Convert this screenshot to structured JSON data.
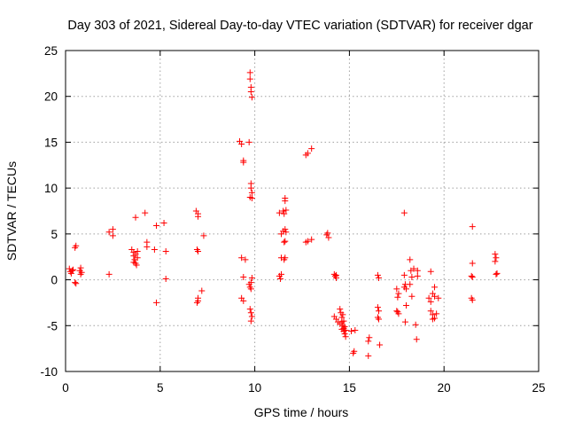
{
  "chart_data": {
    "type": "scatter",
    "title": "Day 303 of 2021, Sidereal Day-to-day VTEC variation (SDTVAR) for receiver dgar",
    "xlabel": "GPS time / hours",
    "ylabel": "SDTVAR / TECUs",
    "xlim": [
      0,
      25
    ],
    "ylim": [
      -10,
      25
    ],
    "xticks": [
      0,
      5,
      10,
      15,
      20,
      25
    ],
    "yticks": [
      -10,
      -5,
      0,
      5,
      10,
      15,
      20,
      25
    ],
    "grid": true,
    "marker": "+",
    "color": "#ff0000",
    "series": [
      {
        "name": "SDTVAR",
        "points": [
          [
            0.2,
            1.2
          ],
          [
            0.25,
            0.9
          ],
          [
            0.3,
            0.7
          ],
          [
            0.35,
            1.0
          ],
          [
            0.4,
            1.1
          ],
          [
            0.5,
            -0.3
          ],
          [
            0.55,
            -0.4
          ],
          [
            0.5,
            3.5
          ],
          [
            0.55,
            3.7
          ],
          [
            0.75,
            1.0
          ],
          [
            0.8,
            0.6
          ],
          [
            0.8,
            1.3
          ],
          [
            0.85,
            0.8
          ],
          [
            2.3,
            0.6
          ],
          [
            2.3,
            5.2
          ],
          [
            2.5,
            5.5
          ],
          [
            2.5,
            4.8
          ],
          [
            3.5,
            3.3
          ],
          [
            3.6,
            3.0
          ],
          [
            3.6,
            2.6
          ],
          [
            3.65,
            2.2
          ],
          [
            3.7,
            1.8
          ],
          [
            3.7,
            2.8
          ],
          [
            3.75,
            1.6
          ],
          [
            3.8,
            2.4
          ],
          [
            3.8,
            3.1
          ],
          [
            3.6,
            1.9
          ],
          [
            3.7,
            6.8
          ],
          [
            4.2,
            7.3
          ],
          [
            4.3,
            4.1
          ],
          [
            4.3,
            3.6
          ],
          [
            4.7,
            3.3
          ],
          [
            4.8,
            5.9
          ],
          [
            4.8,
            -2.5
          ],
          [
            5.2,
            6.2
          ],
          [
            5.3,
            3.1
          ],
          [
            5.3,
            0.1
          ],
          [
            6.9,
            7.5
          ],
          [
            7.0,
            7.2
          ],
          [
            7.0,
            6.9
          ],
          [
            6.95,
            3.3
          ],
          [
            7.0,
            3.1
          ],
          [
            7.0,
            -2.0
          ],
          [
            6.95,
            -2.5
          ],
          [
            7.0,
            -2.3
          ],
          [
            7.2,
            -1.2
          ],
          [
            7.3,
            4.8
          ],
          [
            9.2,
            15.1
          ],
          [
            9.3,
            14.8
          ],
          [
            9.4,
            13.0
          ],
          [
            9.4,
            12.8
          ],
          [
            9.3,
            2.4
          ],
          [
            9.5,
            2.2
          ],
          [
            9.4,
            0.3
          ],
          [
            9.3,
            -2.0
          ],
          [
            9.4,
            -2.3
          ],
          [
            9.7,
            15.0
          ],
          [
            9.75,
            22.6
          ],
          [
            9.75,
            21.9
          ],
          [
            9.8,
            21.0
          ],
          [
            9.8,
            20.5
          ],
          [
            9.85,
            19.9
          ],
          [
            9.8,
            10.5
          ],
          [
            9.8,
            10.0
          ],
          [
            9.85,
            9.5
          ],
          [
            9.75,
            9.0
          ],
          [
            9.85,
            8.9
          ],
          [
            9.7,
            -0.5
          ],
          [
            9.75,
            -0.8
          ],
          [
            9.8,
            -0.3
          ],
          [
            9.85,
            0.2
          ],
          [
            9.8,
            -1.0
          ],
          [
            9.75,
            -3.2
          ],
          [
            9.8,
            -3.6
          ],
          [
            9.85,
            -4.0
          ],
          [
            9.8,
            -4.5
          ],
          [
            11.3,
            7.3
          ],
          [
            11.4,
            5.0
          ],
          [
            11.4,
            2.4
          ],
          [
            11.3,
            0.4
          ],
          [
            11.35,
            0.1
          ],
          [
            11.4,
            0.6
          ],
          [
            11.5,
            7.5
          ],
          [
            11.55,
            7.2
          ],
          [
            11.6,
            8.6
          ],
          [
            11.6,
            8.9
          ],
          [
            11.65,
            7.6
          ],
          [
            11.5,
            5.3
          ],
          [
            11.6,
            5.5
          ],
          [
            11.65,
            5.2
          ],
          [
            11.55,
            4.1
          ],
          [
            11.6,
            4.2
          ],
          [
            11.6,
            2.4
          ],
          [
            11.55,
            2.2
          ],
          [
            12.7,
            13.6
          ],
          [
            12.8,
            13.8
          ],
          [
            13.0,
            14.3
          ],
          [
            12.7,
            4.1
          ],
          [
            12.8,
            4.2
          ],
          [
            13.0,
            4.4
          ],
          [
            13.8,
            4.9
          ],
          [
            13.9,
            4.6
          ],
          [
            13.85,
            5.1
          ],
          [
            14.2,
            0.6
          ],
          [
            14.25,
            0.4
          ],
          [
            14.3,
            0.2
          ],
          [
            14.3,
            0.5
          ],
          [
            14.2,
            -4.0
          ],
          [
            14.3,
            -4.3
          ],
          [
            14.4,
            -4.6
          ],
          [
            14.5,
            -3.2
          ],
          [
            14.55,
            -3.6
          ],
          [
            14.6,
            -4.1
          ],
          [
            14.6,
            -4.6
          ],
          [
            14.65,
            -5.0
          ],
          [
            14.7,
            -5.3
          ],
          [
            14.7,
            -5.6
          ],
          [
            14.75,
            -5.9
          ],
          [
            14.8,
            -6.2
          ],
          [
            14.65,
            -3.8
          ],
          [
            14.7,
            -4.5
          ],
          [
            14.75,
            -5.1
          ],
          [
            14.6,
            -5.4
          ],
          [
            14.5,
            -4.8
          ],
          [
            14.8,
            -5.5
          ],
          [
            15.1,
            -5.6
          ],
          [
            15.2,
            -8.0
          ],
          [
            15.25,
            -7.8
          ],
          [
            15.3,
            -5.5
          ],
          [
            16.0,
            -8.3
          ],
          [
            16.0,
            -6.7
          ],
          [
            16.05,
            -6.3
          ],
          [
            16.5,
            0.5
          ],
          [
            16.55,
            0.2
          ],
          [
            16.5,
            -3.0
          ],
          [
            16.55,
            -3.4
          ],
          [
            16.5,
            -4.1
          ],
          [
            16.55,
            -4.3
          ],
          [
            16.6,
            -7.1
          ],
          [
            17.5,
            -1.0
          ],
          [
            17.6,
            -1.5
          ],
          [
            17.55,
            -1.9
          ],
          [
            17.5,
            -3.4
          ],
          [
            17.6,
            -3.7
          ],
          [
            17.55,
            -3.5
          ],
          [
            17.9,
            0.5
          ],
          [
            17.9,
            -0.8
          ],
          [
            17.95,
            -0.5
          ],
          [
            18.0,
            -1.0
          ],
          [
            18.0,
            -2.8
          ],
          [
            17.95,
            -4.6
          ],
          [
            17.9,
            7.3
          ],
          [
            18.2,
            2.2
          ],
          [
            18.25,
            1.0
          ],
          [
            18.3,
            0.3
          ],
          [
            18.2,
            -0.5
          ],
          [
            18.3,
            -1.8
          ],
          [
            18.4,
            1.2
          ],
          [
            18.6,
            0.4
          ],
          [
            18.6,
            1.0
          ],
          [
            18.5,
            -4.9
          ],
          [
            18.55,
            -6.5
          ],
          [
            19.3,
            0.9
          ],
          [
            19.2,
            -2.0
          ],
          [
            19.3,
            -2.4
          ],
          [
            19.4,
            -1.5
          ],
          [
            19.5,
            -0.8
          ],
          [
            19.3,
            -3.4
          ],
          [
            19.4,
            -3.8
          ],
          [
            19.4,
            -4.3
          ],
          [
            19.5,
            -4.2
          ],
          [
            19.6,
            -3.7
          ],
          [
            19.5,
            -1.8
          ],
          [
            19.7,
            -2.0
          ],
          [
            21.5,
            5.8
          ],
          [
            21.5,
            1.8
          ],
          [
            21.45,
            0.4
          ],
          [
            21.5,
            0.3
          ],
          [
            21.45,
            -2.0
          ],
          [
            21.5,
            -2.2
          ],
          [
            22.7,
            2.8
          ],
          [
            22.75,
            2.4
          ],
          [
            22.7,
            2.0
          ],
          [
            22.75,
            0.6
          ],
          [
            22.8,
            0.7
          ]
        ]
      }
    ]
  }
}
